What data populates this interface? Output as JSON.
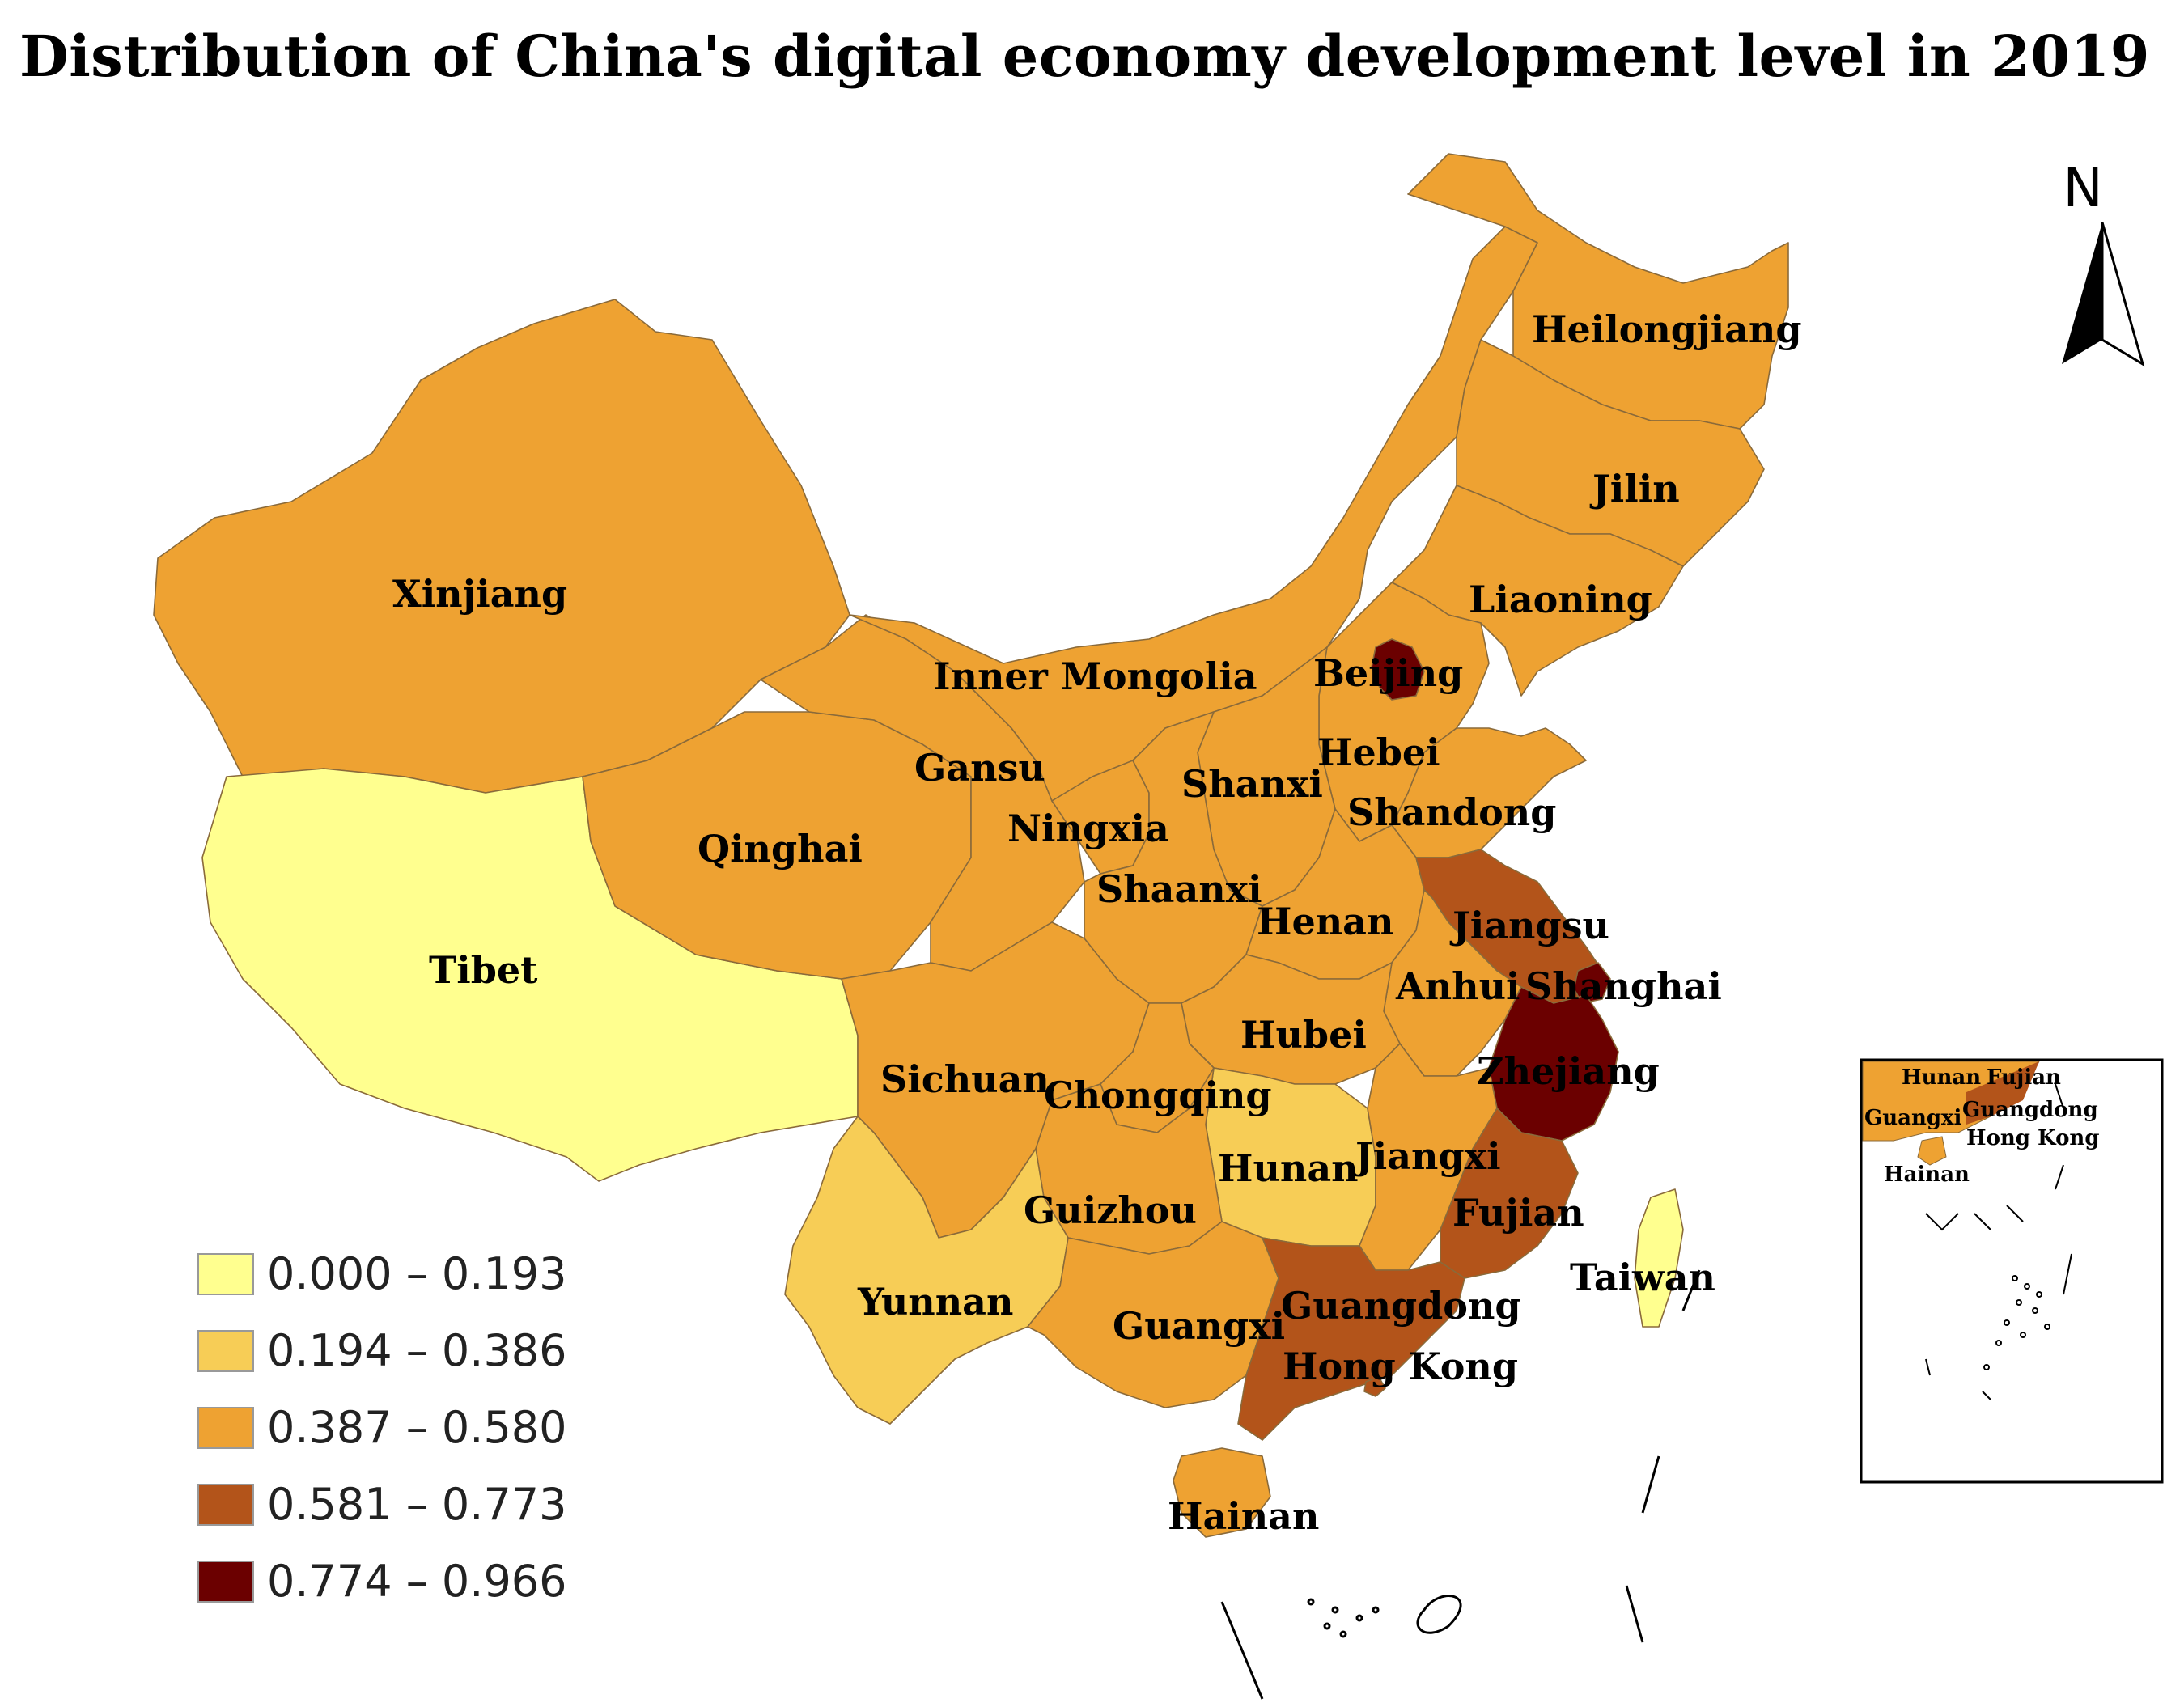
{
  "title": "Distribution of China's digital economy development level in 2019",
  "north_label": "N",
  "legend": [
    {
      "label": "0.000 – 0.193",
      "color": "#ffff8f"
    },
    {
      "label": "0.194 – 0.386",
      "color": "#f7cd56"
    },
    {
      "label": "0.387 – 0.580",
      "color": "#eea232"
    },
    {
      "label": "0.581 – 0.773",
      "color": "#b3541a"
    },
    {
      "label": "0.774 – 0.966",
      "color": "#6b0000"
    }
  ],
  "provinces": [
    {
      "name": "Xinjiang",
      "class": 3
    },
    {
      "name": "Tibet",
      "class": 1
    },
    {
      "name": "Qinghai",
      "class": 3
    },
    {
      "name": "Gansu",
      "class": 3
    },
    {
      "name": "Inner Mongolia",
      "class": 3
    },
    {
      "name": "Heilongjiang",
      "class": 3
    },
    {
      "name": "Jilin",
      "class": 3
    },
    {
      "name": "Liaoning",
      "class": 3
    },
    {
      "name": "Beijing",
      "class": 5
    },
    {
      "name": "Hebei",
      "class": 3
    },
    {
      "name": "Shanxi",
      "class": 3
    },
    {
      "name": "Shandong",
      "class": 3
    },
    {
      "name": "Ningxia",
      "class": 3
    },
    {
      "name": "Shaanxi",
      "class": 3
    },
    {
      "name": "Henan",
      "class": 3
    },
    {
      "name": "Jiangsu",
      "class": 4
    },
    {
      "name": "Anhui",
      "class": 3
    },
    {
      "name": "Shanghai",
      "class": 5
    },
    {
      "name": "Hubei",
      "class": 3
    },
    {
      "name": "Zhejiang",
      "class": 5
    },
    {
      "name": "Sichuan",
      "class": 3
    },
    {
      "name": "Chongqing",
      "class": 3
    },
    {
      "name": "Hunan",
      "class": 2
    },
    {
      "name": "Jiangxi",
      "class": 3
    },
    {
      "name": "Guizhou",
      "class": 3
    },
    {
      "name": "Fujian",
      "class": 4
    },
    {
      "name": "Yunnan",
      "class": 2
    },
    {
      "name": "Guangxi",
      "class": 3
    },
    {
      "name": "Guangdong",
      "class": 4
    },
    {
      "name": "Hong Kong",
      "class": 4
    },
    {
      "name": "Hainan",
      "class": 3
    },
    {
      "name": "Taiwan",
      "class": 1
    }
  ],
  "inset_labels": [
    "Hunan",
    "Fujian",
    "Guangxi",
    "Guangdong",
    "Hong Kong",
    "Hainan"
  ]
}
